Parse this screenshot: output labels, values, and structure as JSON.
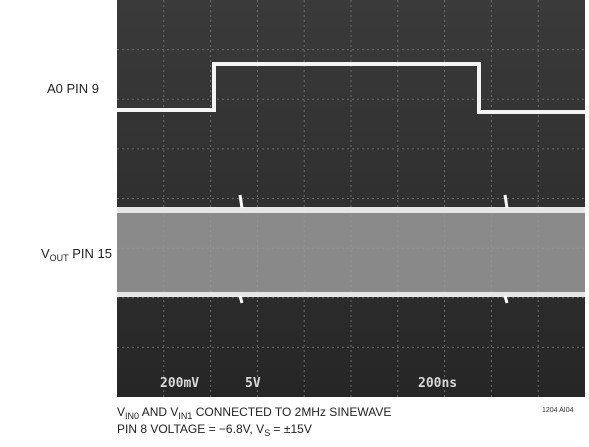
{
  "labels": {
    "a0": "A0 PIN 9",
    "vout": [
      "V",
      "OUT",
      " PIN 15"
    ]
  },
  "readout": {
    "ch1": "200mV",
    "ch2": "5V",
    "time": "200ns"
  },
  "figure_id": "1204 AI04",
  "caption": {
    "line1": [
      "V",
      "IN0",
      " AND V",
      "IN1",
      " CONNECTED TO 2MHz SINEWAVE"
    ],
    "line2": [
      "PIN 8 VOLTAGE = −6.8V, V",
      "S",
      " = ±15V"
    ]
  }
}
